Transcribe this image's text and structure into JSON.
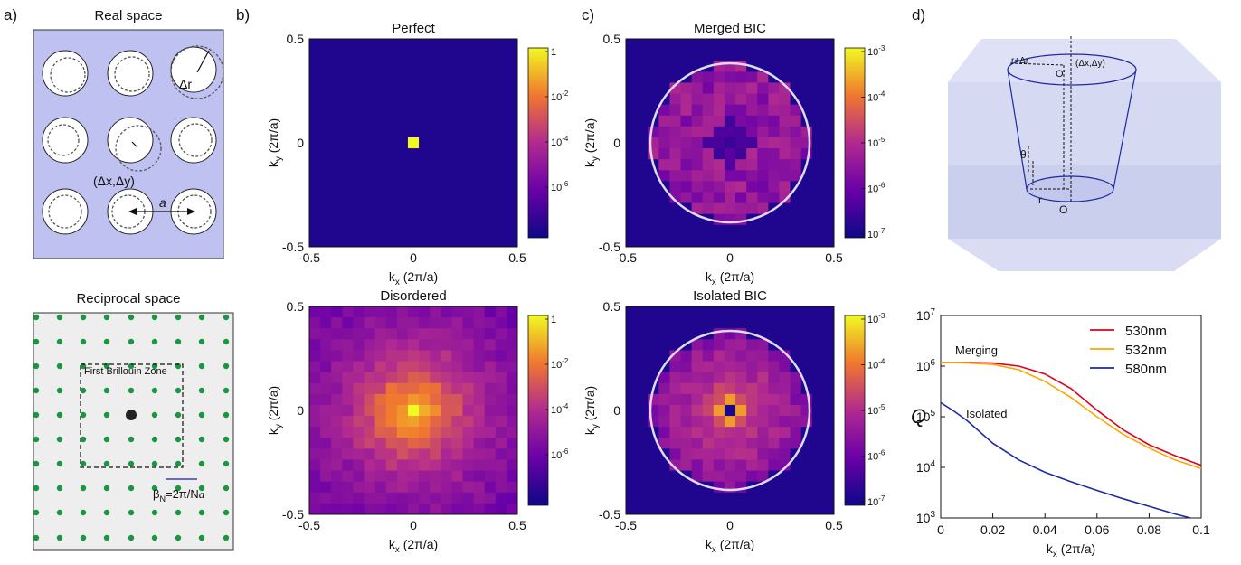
{
  "figure": {
    "panel_a": {
      "label": "a)",
      "real_title": "Real space",
      "delta_r": "Δr",
      "delta_xy": "(Δx,Δy)",
      "lattice_const": "a",
      "recip_title": "Reciprocal space",
      "bz_label": "First Brillouin Zone",
      "beta_main": "β",
      "beta_sub": "N",
      "beta_rest": "=2π/N",
      "beta_a": "a",
      "colors": {
        "real_bg": "#bfc1f0",
        "recip_bg": "#eeeeee",
        "dot": "#1a9641",
        "center": "#222222"
      }
    },
    "panel_b": {
      "label": "b)"
    },
    "panel_c": {
      "label": "c)"
    },
    "panel_d": {
      "label": "d)",
      "cone_labels": {
        "top_radius": "r+Δr",
        "top_center": "O'",
        "shift": "(Δx,Δy)",
        "angle": "θ",
        "bottom_radius": "r",
        "bottom_center": "O"
      }
    },
    "axes": {
      "xlabel": "k",
      "xsub": "x",
      "ylabel": "k",
      "ysub": "y",
      "unit": " (2π/a)",
      "ticks": [
        "-0.5",
        "0",
        "0.5"
      ]
    },
    "colorbar_ticks": {
      "top_row": [
        {
          "base": "1",
          "exp": ""
        },
        {
          "base": "10",
          "exp": "-2"
        },
        {
          "base": "10",
          "exp": "-4"
        },
        {
          "base": "10",
          "exp": "-6"
        }
      ],
      "bottom_row": [
        {
          "base": "10",
          "exp": "-3"
        },
        {
          "base": "10",
          "exp": "-4"
        },
        {
          "base": "10",
          "exp": "-5"
        },
        {
          "base": "10",
          "exp": "-6"
        },
        {
          "base": "10",
          "exp": "-7"
        }
      ]
    },
    "heatmaps": [
      {
        "title": "Perfect",
        "pattern": "perfect",
        "circle": false
      },
      {
        "title": "Disordered",
        "pattern": "disordered",
        "circle": false
      },
      {
        "title": "Merged BIC",
        "pattern": "merged",
        "circle": true
      },
      {
        "title": "Isolated BIC",
        "pattern": "isolated",
        "circle": true
      }
    ]
  },
  "chart_data": {
    "type": "line",
    "xlabel": "k",
    "xlabel_sub": "x",
    "xlabel_unit": " (2π/a)",
    "ylabel": "Q",
    "yscale": "log",
    "xlim": [
      0,
      0.1
    ],
    "ylim": [
      1000,
      10000000
    ],
    "xticks": [
      "0",
      "0.02",
      "0.04",
      "0.06",
      "0.08",
      "0.1"
    ],
    "yticks": [
      {
        "base": "10",
        "exp": "3"
      },
      {
        "base": "10",
        "exp": "4"
      },
      {
        "base": "10",
        "exp": "5"
      },
      {
        "base": "10",
        "exp": "6"
      },
      {
        "base": "10",
        "exp": "7"
      }
    ],
    "annotations": [
      "Merging",
      "Isolated"
    ],
    "legend_position": "top-right",
    "series": [
      {
        "name": "530nm",
        "color": "#e0001b",
        "x": [
          0,
          0.01,
          0.02,
          0.03,
          0.04,
          0.05,
          0.06,
          0.07,
          0.08,
          0.09,
          0.1
        ],
        "y": [
          1180000,
          1180000,
          1150000,
          1000000,
          700000,
          360000,
          135000,
          55000,
          28000,
          17000,
          11000
        ]
      },
      {
        "name": "532nm",
        "color": "#ffa500",
        "x": [
          0,
          0.01,
          0.02,
          0.03,
          0.04,
          0.05,
          0.06,
          0.07,
          0.08,
          0.09,
          0.1
        ],
        "y": [
          1180000,
          1160000,
          1080000,
          850000,
          500000,
          240000,
          100000,
          45000,
          24000,
          14000,
          9500
        ]
      },
      {
        "name": "580nm",
        "color": "#1c2ba0",
        "x": [
          0,
          0.005,
          0.01,
          0.02,
          0.03,
          0.04,
          0.05,
          0.06,
          0.07,
          0.08,
          0.09,
          0.1
        ],
        "y": [
          190000,
          130000,
          85000,
          30000,
          14000,
          8000,
          5200,
          3500,
          2400,
          1700,
          1200,
          880
        ]
      }
    ]
  }
}
